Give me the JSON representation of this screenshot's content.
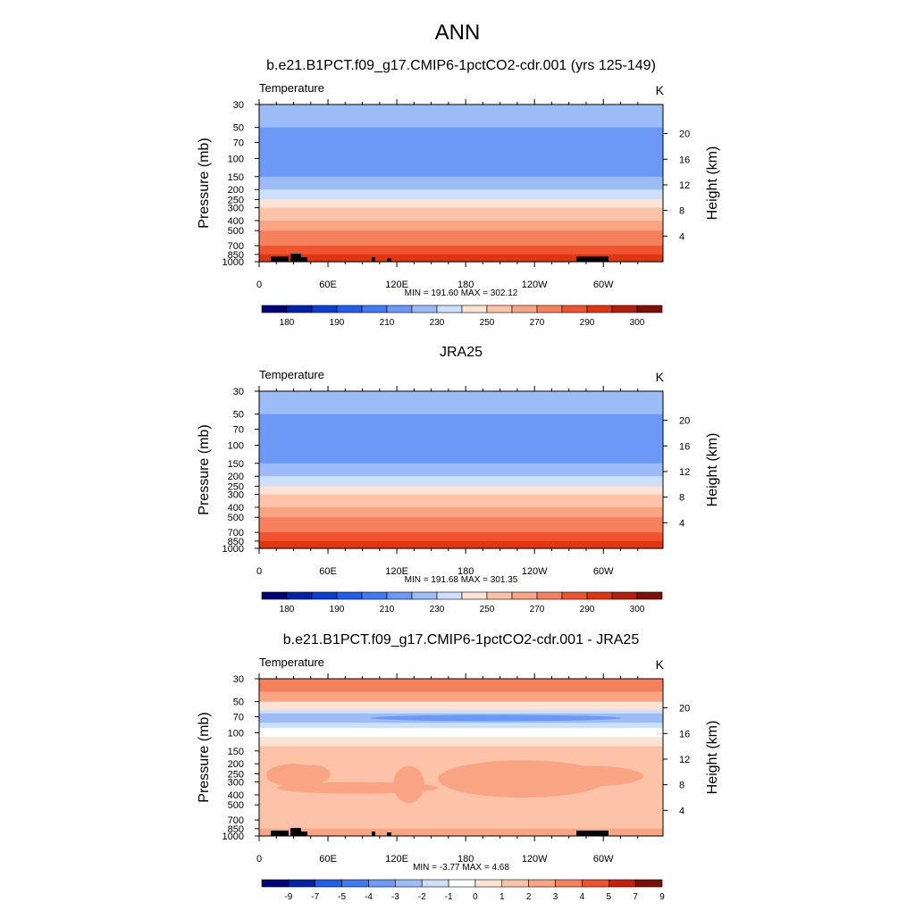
{
  "main_title": "ANN",
  "chart_data": [
    {
      "type": "contour",
      "title": "b.e21.B1PCT.f09_g17.CMIP6-1pctCO2-cdr.001 (yrs 125-149)",
      "variable_label": "Temperature",
      "units": "K",
      "ylabel": "Pressure (mb)",
      "y2label": "Height (km)",
      "pressure_ticks": [
        "30",
        "50",
        "70",
        "100",
        "150",
        "200",
        "250",
        "300",
        "400",
        "500",
        "700",
        "850",
        "1000"
      ],
      "height_ticks": [
        "20",
        "16",
        "12",
        "8",
        "4"
      ],
      "lon_ticks": [
        "0",
        "60E",
        "120E",
        "180",
        "120W",
        "60W"
      ],
      "stats": "MIN = 191.60  MAX = 302.12",
      "colorbar_labels": [
        "180",
        "190",
        "210",
        "230",
        "250",
        "270",
        "290",
        "300"
      ],
      "levels": [
        175,
        180,
        185,
        190,
        200,
        210,
        220,
        230,
        240,
        250,
        260,
        270,
        280,
        290,
        295,
        300
      ],
      "bands": [
        {
          "from": "30",
          "to": "50",
          "value": 215
        },
        {
          "from": "50",
          "to": "150",
          "value": 205
        },
        {
          "from": "150",
          "to": "200",
          "value": 212
        },
        {
          "from": "200",
          "to": "250",
          "value": 222
        },
        {
          "from": "250",
          "to": "300",
          "value": 232
        },
        {
          "from": "300",
          "to": "400",
          "value": 242
        },
        {
          "from": "400",
          "to": "500",
          "value": 252
        },
        {
          "from": "500",
          "to": "700",
          "value": 262
        },
        {
          "from": "700",
          "to": "850",
          "value": 275
        },
        {
          "from": "850",
          "to": "1000",
          "value": 285
        }
      ],
      "terrain": true
    },
    {
      "type": "contour",
      "title": "JRA25",
      "variable_label": "Temperature",
      "units": "K",
      "ylabel": "Pressure (mb)",
      "y2label": "Height (km)",
      "pressure_ticks": [
        "30",
        "50",
        "70",
        "100",
        "150",
        "200",
        "250",
        "300",
        "400",
        "500",
        "700",
        "850",
        "1000"
      ],
      "height_ticks": [
        "20",
        "16",
        "12",
        "8",
        "4"
      ],
      "lon_ticks": [
        "0",
        "60E",
        "120E",
        "180",
        "120W",
        "60W"
      ],
      "stats": "MIN = 191.68  MAX = 301.35",
      "colorbar_labels": [
        "180",
        "190",
        "210",
        "230",
        "250",
        "270",
        "290",
        "300"
      ],
      "levels": [
        175,
        180,
        185,
        190,
        200,
        210,
        220,
        230,
        240,
        250,
        260,
        270,
        280,
        290,
        295,
        300
      ],
      "bands": [
        {
          "from": "30",
          "to": "50",
          "value": 215
        },
        {
          "from": "50",
          "to": "150",
          "value": 205
        },
        {
          "from": "150",
          "to": "200",
          "value": 212
        },
        {
          "from": "200",
          "to": "250",
          "value": 222
        },
        {
          "from": "250",
          "to": "300",
          "value": 232
        },
        {
          "from": "300",
          "to": "400",
          "value": 242
        },
        {
          "from": "400",
          "to": "500",
          "value": 252
        },
        {
          "from": "500",
          "to": "700",
          "value": 262
        },
        {
          "from": "700",
          "to": "850",
          "value": 275
        },
        {
          "from": "850",
          "to": "1000",
          "value": 285
        }
      ],
      "terrain": false
    },
    {
      "type": "contour",
      "title": "b.e21.B1PCT.f09_g17.CMIP6-1pctCO2-cdr.001 - JRA25",
      "variable_label": "Temperature",
      "units": "K",
      "ylabel": "Pressure (mb)",
      "y2label": "Height (km)",
      "pressure_ticks": [
        "30",
        "50",
        "70",
        "100",
        "150",
        "200",
        "250",
        "300",
        "400",
        "500",
        "700",
        "850",
        "1000"
      ],
      "height_ticks": [
        "20",
        "16",
        "12",
        "8",
        "4"
      ],
      "lon_ticks": [
        "0",
        "60E",
        "120E",
        "180",
        "120W",
        "60W"
      ],
      "stats": "MIN =  -3.77  MAX =   4.68",
      "colorbar_labels": [
        "-9",
        "-7",
        "-5",
        "-4",
        "-3",
        "-2",
        "-1",
        "0",
        "1",
        "2",
        "3",
        "4",
        "5",
        "7",
        "9"
      ],
      "levels": [
        -9,
        -7,
        -5,
        -4,
        -3,
        -2,
        -1,
        0,
        1,
        2,
        3,
        4,
        5,
        7,
        9
      ],
      "bands": [
        {
          "from": "30",
          "to": "40",
          "value": 3.5
        },
        {
          "from": "40",
          "to": "50",
          "value": 2.5
        },
        {
          "from": "50",
          "to": "60",
          "value": 0.5
        },
        {
          "from": "60",
          "to": "65",
          "value": -1.5
        },
        {
          "from": "65",
          "to": "80",
          "value": -2.5
        },
        {
          "from": "80",
          "to": "90",
          "value": -1.5
        },
        {
          "from": "90",
          "to": "110",
          "value": -0.5
        },
        {
          "from": "110",
          "to": "135",
          "value": 0.5
        },
        {
          "from": "135",
          "to": "700",
          "value": 1.5
        },
        {
          "from": "700",
          "to": "850",
          "value": 1.5
        },
        {
          "from": "850",
          "to": "1000",
          "value": 2.5
        }
      ],
      "terrain": true
    }
  ]
}
